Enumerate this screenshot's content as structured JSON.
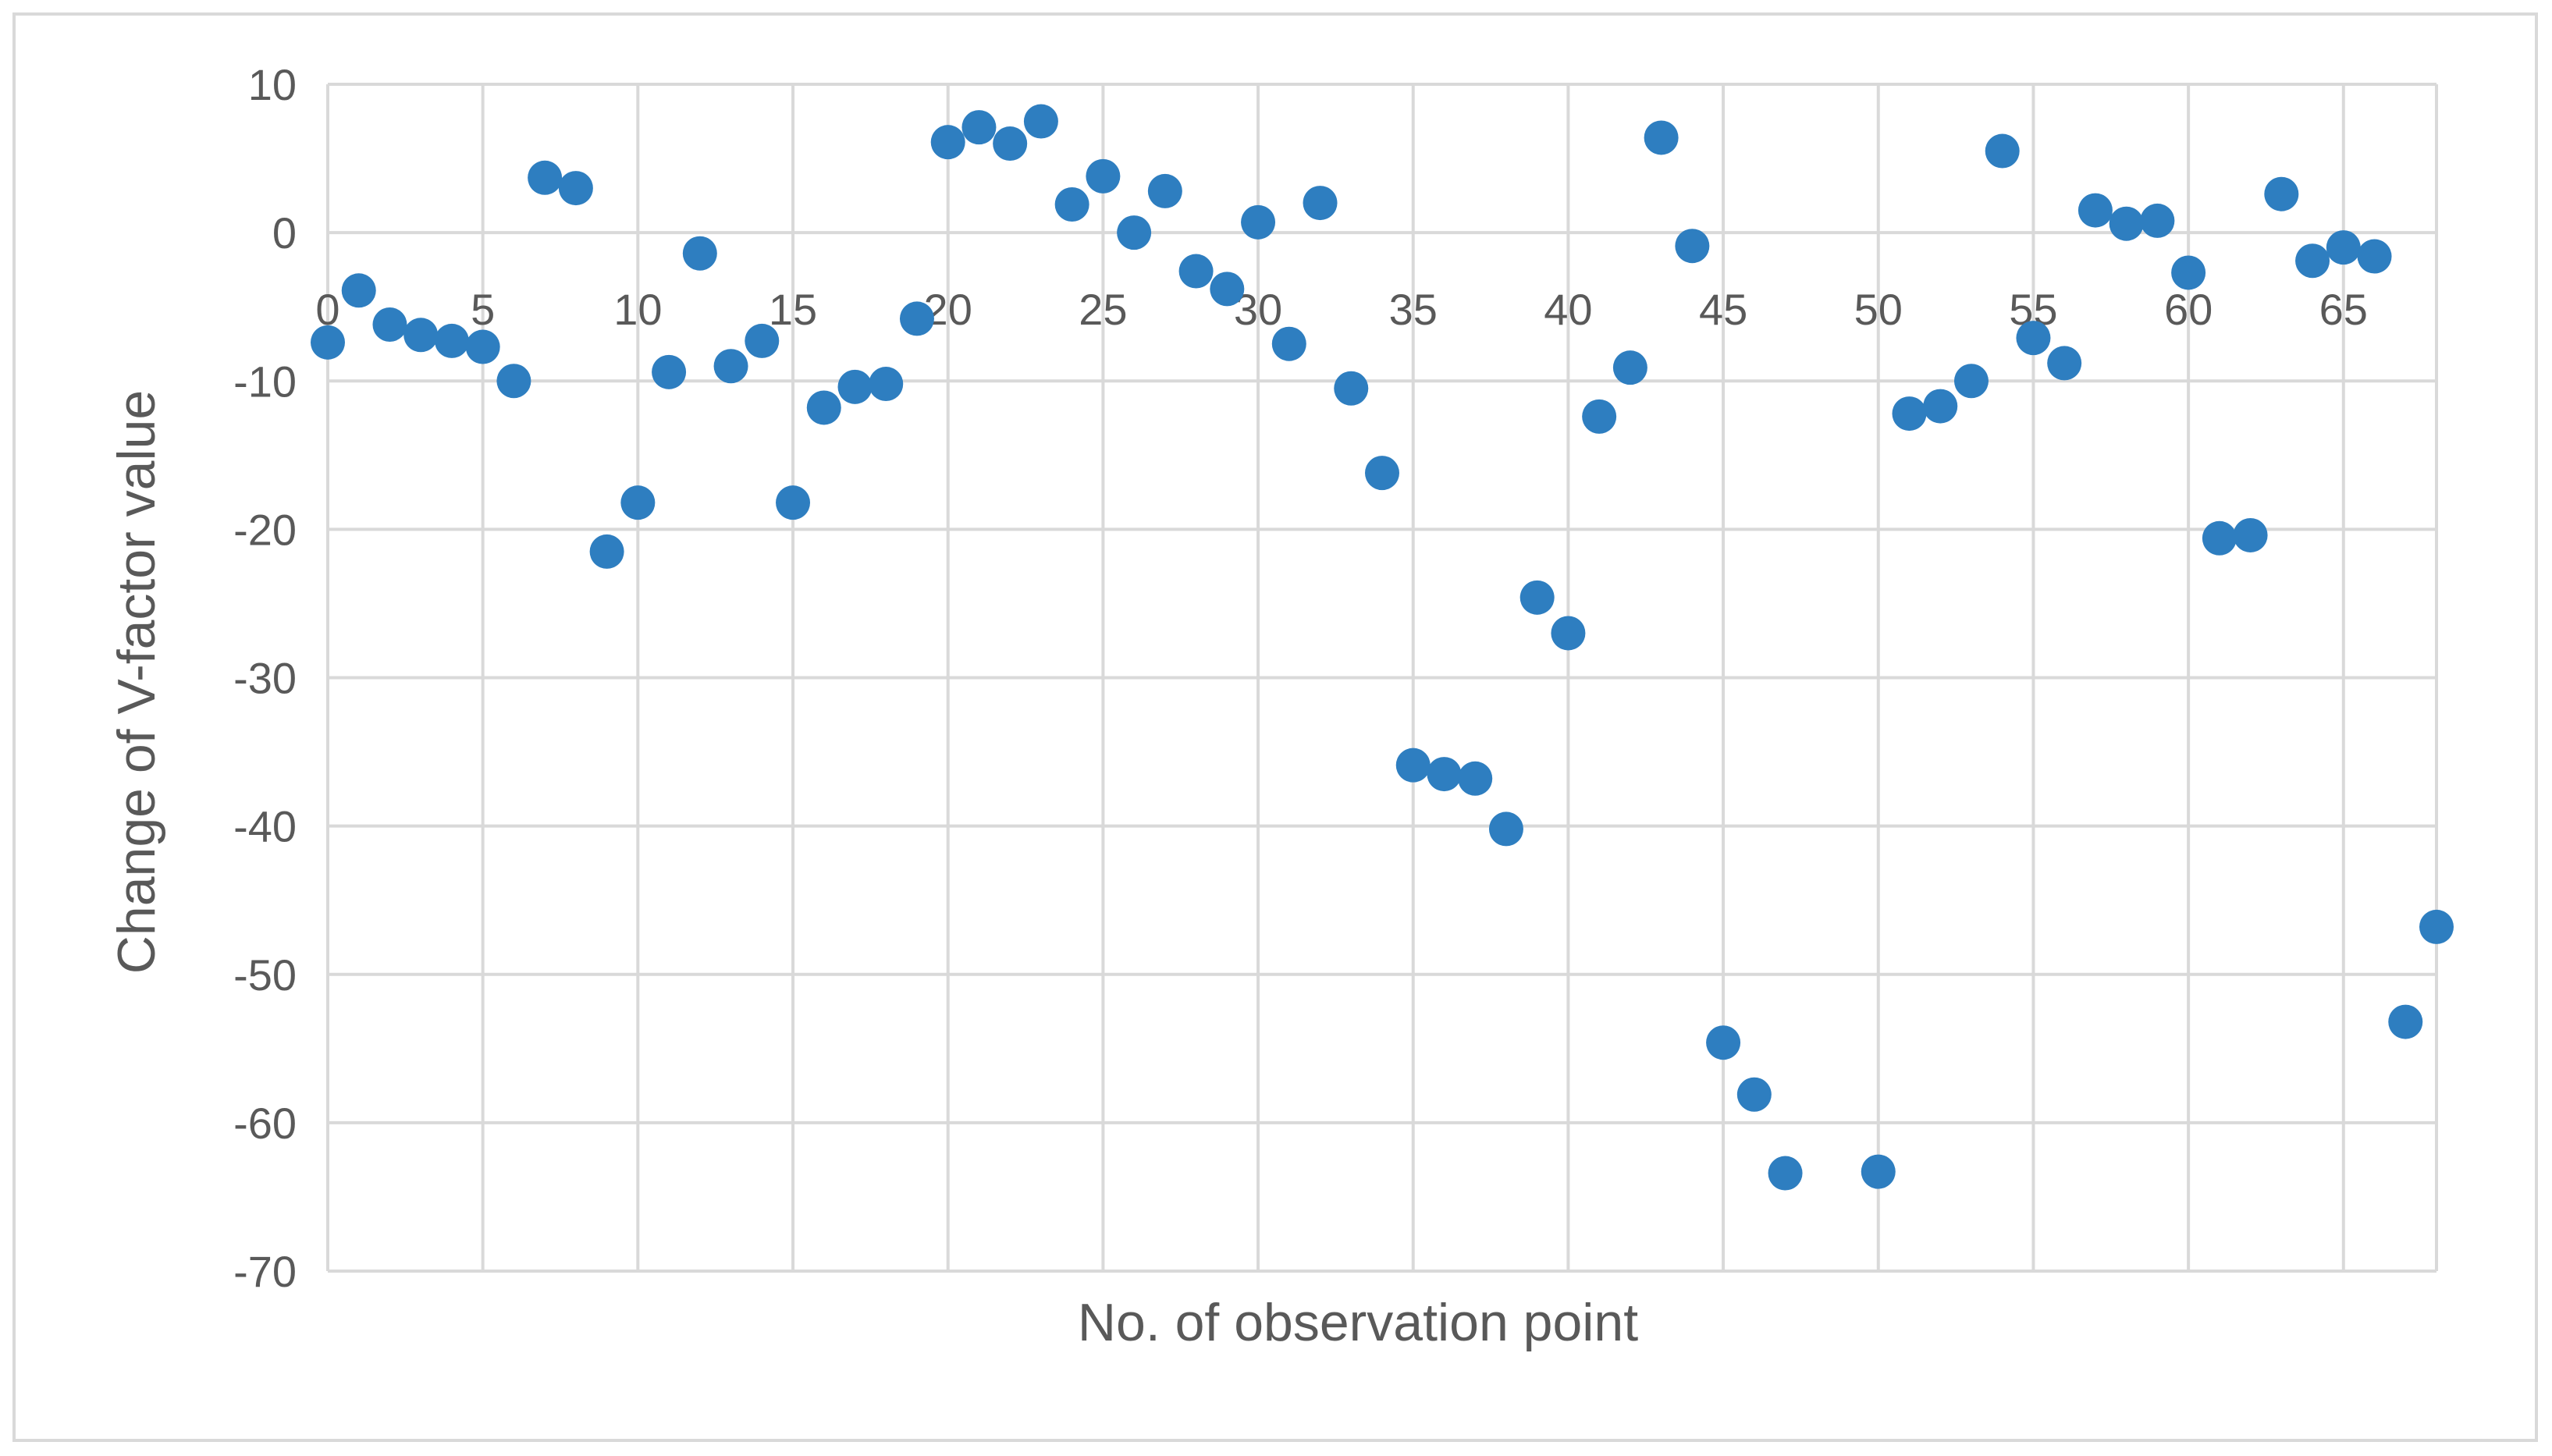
{
  "chart_data": {
    "type": "scatter",
    "title": "",
    "xlabel": "No. of observation point",
    "ylabel": "Change of V-factor value",
    "xlim": [
      0,
      68
    ],
    "ylim": [
      -70,
      10
    ],
    "x_ticks": [
      0,
      5,
      10,
      15,
      20,
      25,
      30,
      35,
      40,
      45,
      50,
      55,
      60,
      65
    ],
    "x_tick_labels": [
      "0",
      "5",
      "10",
      "15",
      "20",
      "25",
      "30",
      "35",
      "40",
      "45",
      "50",
      "55",
      "60",
      "65"
    ],
    "y_ticks": [
      10,
      0,
      -10,
      -20,
      -30,
      -40,
      -50,
      -60,
      -70
    ],
    "y_tick_labels": [
      "10",
      "0",
      "-10",
      "-20",
      "-30",
      "-40",
      "-50",
      "-60",
      "-70"
    ],
    "grid": true,
    "marker_color": "#2E7EC0",
    "grid_color": "#d9d9d9",
    "series": [
      {
        "points": [
          [
            0,
            -7.4
          ],
          [
            1,
            -3.9
          ],
          [
            2,
            -6.2
          ],
          [
            3,
            -6.9
          ],
          [
            4,
            -7.3
          ],
          [
            5,
            -7.7
          ],
          [
            6,
            -10.0
          ],
          [
            7,
            3.7
          ],
          [
            8,
            3.0
          ],
          [
            9,
            -21.5
          ],
          [
            10,
            -18.2
          ],
          [
            11,
            -9.4
          ],
          [
            12,
            -1.4
          ],
          [
            13,
            -9.0
          ],
          [
            14,
            -7.3
          ],
          [
            15,
            -18.2
          ],
          [
            16,
            -11.8
          ],
          [
            17,
            -10.4
          ],
          [
            18,
            -10.2
          ],
          [
            19,
            -5.8
          ],
          [
            20,
            6.1
          ],
          [
            21,
            7.1
          ],
          [
            22,
            6.0
          ],
          [
            23,
            7.5
          ],
          [
            24,
            1.9
          ],
          [
            25,
            3.8
          ],
          [
            26,
            0.0
          ],
          [
            27,
            2.8
          ],
          [
            28,
            -2.6
          ],
          [
            29,
            -3.8
          ],
          [
            30,
            0.7
          ],
          [
            31,
            -7.5
          ],
          [
            32,
            2.0
          ],
          [
            33,
            -10.5
          ],
          [
            34,
            -16.2
          ],
          [
            35,
            -35.9
          ],
          [
            36,
            -36.5
          ],
          [
            37,
            -36.8
          ],
          [
            38,
            -40.2
          ],
          [
            39,
            -24.6
          ],
          [
            40,
            -27.0
          ],
          [
            41,
            -12.4
          ],
          [
            42,
            -9.1
          ],
          [
            43,
            6.4
          ],
          [
            44,
            -0.9
          ],
          [
            45,
            -54.6
          ],
          [
            46,
            -58.1
          ],
          [
            47,
            -63.4
          ],
          [
            50,
            -63.3
          ],
          [
            51,
            -12.2
          ],
          [
            52,
            -11.7
          ],
          [
            53,
            -10.0
          ],
          [
            54,
            5.5
          ],
          [
            55,
            -7.1
          ],
          [
            56,
            -8.8
          ],
          [
            57,
            1.5
          ],
          [
            58,
            0.6
          ],
          [
            59,
            0.8
          ],
          [
            60,
            -2.7
          ],
          [
            61,
            -20.6
          ],
          [
            62,
            -20.4
          ],
          [
            63,
            2.6
          ],
          [
            64,
            -1.9
          ],
          [
            65,
            -1.0
          ],
          [
            66,
            -1.6
          ],
          [
            67,
            -53.2
          ],
          [
            68,
            -46.8
          ]
        ]
      }
    ]
  }
}
